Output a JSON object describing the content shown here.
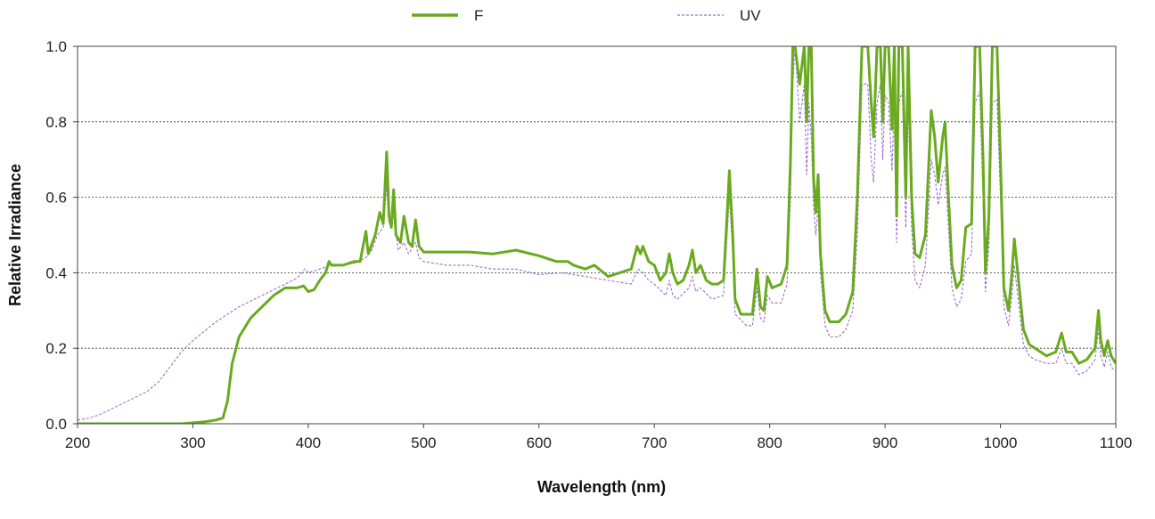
{
  "chart_data": {
    "type": "line",
    "xlabel": "Wavelength (nm)",
    "ylabel": "Relative Irradiance",
    "xlim": [
      200,
      1100
    ],
    "ylim": [
      0,
      1.0
    ],
    "x_ticks": [
      "200",
      "300",
      "400",
      "500",
      "600",
      "700",
      "800",
      "900",
      "1000",
      "1100"
    ],
    "y_ticks": [
      "0.0",
      "0.2",
      "0.4",
      "0.6",
      "0.8",
      "1.0"
    ],
    "grid": "horizontal dotted",
    "legend_position": "top",
    "series": [
      {
        "name": "F",
        "color": "#6aaa1e",
        "style": "solid",
        "points": [
          [
            200,
            0.0
          ],
          [
            250,
            0.0
          ],
          [
            290,
            0.0
          ],
          [
            310,
            0.005
          ],
          [
            320,
            0.01
          ],
          [
            326,
            0.015
          ],
          [
            330,
            0.06
          ],
          [
            334,
            0.16
          ],
          [
            340,
            0.23
          ],
          [
            350,
            0.28
          ],
          [
            360,
            0.31
          ],
          [
            370,
            0.34
          ],
          [
            380,
            0.36
          ],
          [
            390,
            0.36
          ],
          [
            396,
            0.365
          ],
          [
            400,
            0.35
          ],
          [
            405,
            0.355
          ],
          [
            410,
            0.38
          ],
          [
            415,
            0.4
          ],
          [
            418,
            0.43
          ],
          [
            420,
            0.42
          ],
          [
            430,
            0.42
          ],
          [
            440,
            0.43
          ],
          [
            445,
            0.43
          ],
          [
            450,
            0.51
          ],
          [
            452,
            0.45
          ],
          [
            458,
            0.5
          ],
          [
            462,
            0.56
          ],
          [
            465,
            0.53
          ],
          [
            468,
            0.72
          ],
          [
            470,
            0.55
          ],
          [
            472,
            0.52
          ],
          [
            474,
            0.62
          ],
          [
            476,
            0.5
          ],
          [
            480,
            0.48
          ],
          [
            483,
            0.55
          ],
          [
            487,
            0.48
          ],
          [
            490,
            0.47
          ],
          [
            493,
            0.54
          ],
          [
            496,
            0.47
          ],
          [
            500,
            0.455
          ],
          [
            520,
            0.455
          ],
          [
            540,
            0.455
          ],
          [
            560,
            0.45
          ],
          [
            580,
            0.46
          ],
          [
            600,
            0.445
          ],
          [
            615,
            0.43
          ],
          [
            620,
            0.43
          ],
          [
            625,
            0.43
          ],
          [
            630,
            0.42
          ],
          [
            640,
            0.41
          ],
          [
            648,
            0.42
          ],
          [
            652,
            0.41
          ],
          [
            660,
            0.39
          ],
          [
            670,
            0.4
          ],
          [
            680,
            0.41
          ],
          [
            685,
            0.47
          ],
          [
            688,
            0.45
          ],
          [
            690,
            0.47
          ],
          [
            695,
            0.43
          ],
          [
            700,
            0.42
          ],
          [
            705,
            0.38
          ],
          [
            710,
            0.4
          ],
          [
            713,
            0.45
          ],
          [
            716,
            0.4
          ],
          [
            720,
            0.37
          ],
          [
            725,
            0.38
          ],
          [
            730,
            0.42
          ],
          [
            733,
            0.46
          ],
          [
            736,
            0.4
          ],
          [
            740,
            0.42
          ],
          [
            745,
            0.38
          ],
          [
            750,
            0.37
          ],
          [
            755,
            0.37
          ],
          [
            760,
            0.38
          ],
          [
            763,
            0.55
          ],
          [
            765,
            0.67
          ],
          [
            768,
            0.5
          ],
          [
            770,
            0.33
          ],
          [
            775,
            0.29
          ],
          [
            780,
            0.29
          ],
          [
            785,
            0.29
          ],
          [
            789,
            0.41
          ],
          [
            792,
            0.31
          ],
          [
            795,
            0.3
          ],
          [
            798,
            0.39
          ],
          [
            802,
            0.36
          ],
          [
            810,
            0.37
          ],
          [
            815,
            0.42
          ],
          [
            818,
            0.7
          ],
          [
            820,
            1.0
          ],
          [
            822,
            1.0
          ],
          [
            826,
            0.9
          ],
          [
            830,
            1.0
          ],
          [
            832,
            0.8
          ],
          [
            834,
            1.0
          ],
          [
            836,
            1.0
          ],
          [
            838,
            0.65
          ],
          [
            840,
            0.56
          ],
          [
            842,
            0.66
          ],
          [
            844,
            0.45
          ],
          [
            848,
            0.3
          ],
          [
            852,
            0.27
          ],
          [
            860,
            0.27
          ],
          [
            866,
            0.29
          ],
          [
            872,
            0.35
          ],
          [
            876,
            0.6
          ],
          [
            880,
            1.0
          ],
          [
            885,
            1.0
          ],
          [
            888,
            0.85
          ],
          [
            890,
            0.76
          ],
          [
            893,
            1.0
          ],
          [
            896,
            1.0
          ],
          [
            898,
            0.8
          ],
          [
            900,
            1.0
          ],
          [
            903,
            1.0
          ],
          [
            906,
            0.78
          ],
          [
            908,
            1.0
          ],
          [
            910,
            0.55
          ],
          [
            912,
            1.0
          ],
          [
            915,
            1.0
          ],
          [
            918,
            0.6
          ],
          [
            920,
            1.0
          ],
          [
            923,
            0.6
          ],
          [
            926,
            0.45
          ],
          [
            930,
            0.44
          ],
          [
            935,
            0.5
          ],
          [
            940,
            0.83
          ],
          [
            943,
            0.76
          ],
          [
            946,
            0.64
          ],
          [
            950,
            0.76
          ],
          [
            952,
            0.8
          ],
          [
            955,
            0.6
          ],
          [
            958,
            0.42
          ],
          [
            962,
            0.36
          ],
          [
            966,
            0.38
          ],
          [
            970,
            0.52
          ],
          [
            975,
            0.53
          ],
          [
            978,
            1.0
          ],
          [
            982,
            1.0
          ],
          [
            985,
            0.7
          ],
          [
            987,
            0.4
          ],
          [
            990,
            0.55
          ],
          [
            993,
            1.0
          ],
          [
            997,
            1.0
          ],
          [
            1000,
            0.7
          ],
          [
            1003,
            0.36
          ],
          [
            1007,
            0.3
          ],
          [
            1010,
            0.4
          ],
          [
            1012,
            0.49
          ],
          [
            1015,
            0.4
          ],
          [
            1020,
            0.25
          ],
          [
            1025,
            0.21
          ],
          [
            1030,
            0.2
          ],
          [
            1040,
            0.18
          ],
          [
            1048,
            0.19
          ],
          [
            1053,
            0.24
          ],
          [
            1057,
            0.19
          ],
          [
            1062,
            0.19
          ],
          [
            1068,
            0.16
          ],
          [
            1075,
            0.17
          ],
          [
            1082,
            0.2
          ],
          [
            1085,
            0.3
          ],
          [
            1087,
            0.22
          ],
          [
            1090,
            0.18
          ],
          [
            1093,
            0.22
          ],
          [
            1096,
            0.18
          ],
          [
            1100,
            0.16
          ]
        ]
      },
      {
        "name": "UV",
        "color": "#9b6ecf",
        "style": "dashed",
        "points": [
          [
            200,
            0.01
          ],
          [
            210,
            0.015
          ],
          [
            220,
            0.025
          ],
          [
            230,
            0.04
          ],
          [
            240,
            0.055
          ],
          [
            250,
            0.07
          ],
          [
            260,
            0.085
          ],
          [
            270,
            0.11
          ],
          [
            280,
            0.15
          ],
          [
            290,
            0.19
          ],
          [
            300,
            0.22
          ],
          [
            310,
            0.245
          ],
          [
            320,
            0.27
          ],
          [
            330,
            0.29
          ],
          [
            340,
            0.31
          ],
          [
            350,
            0.325
          ],
          [
            360,
            0.34
          ],
          [
            370,
            0.355
          ],
          [
            380,
            0.37
          ],
          [
            390,
            0.385
          ],
          [
            397,
            0.41
          ],
          [
            400,
            0.4
          ],
          [
            410,
            0.41
          ],
          [
            420,
            0.42
          ],
          [
            430,
            0.42
          ],
          [
            440,
            0.425
          ],
          [
            450,
            0.44
          ],
          [
            455,
            0.46
          ],
          [
            460,
            0.5
          ],
          [
            465,
            0.52
          ],
          [
            468,
            0.63
          ],
          [
            470,
            0.53
          ],
          [
            474,
            0.55
          ],
          [
            478,
            0.46
          ],
          [
            483,
            0.48
          ],
          [
            487,
            0.45
          ],
          [
            493,
            0.48
          ],
          [
            496,
            0.44
          ],
          [
            500,
            0.43
          ],
          [
            520,
            0.42
          ],
          [
            540,
            0.42
          ],
          [
            560,
            0.41
          ],
          [
            580,
            0.41
          ],
          [
            600,
            0.395
          ],
          [
            620,
            0.4
          ],
          [
            640,
            0.39
          ],
          [
            660,
            0.38
          ],
          [
            680,
            0.37
          ],
          [
            686,
            0.41
          ],
          [
            690,
            0.4
          ],
          [
            695,
            0.38
          ],
          [
            700,
            0.37
          ],
          [
            710,
            0.34
          ],
          [
            713,
            0.38
          ],
          [
            716,
            0.34
          ],
          [
            720,
            0.33
          ],
          [
            730,
            0.36
          ],
          [
            733,
            0.39
          ],
          [
            736,
            0.35
          ],
          [
            740,
            0.36
          ],
          [
            750,
            0.33
          ],
          [
            760,
            0.34
          ],
          [
            765,
            0.6
          ],
          [
            768,
            0.45
          ],
          [
            770,
            0.29
          ],
          [
            780,
            0.26
          ],
          [
            785,
            0.26
          ],
          [
            789,
            0.36
          ],
          [
            792,
            0.28
          ],
          [
            795,
            0.27
          ],
          [
            798,
            0.34
          ],
          [
            802,
            0.32
          ],
          [
            810,
            0.32
          ],
          [
            815,
            0.37
          ],
          [
            818,
            0.6
          ],
          [
            820,
            0.9
          ],
          [
            822,
            1.0
          ],
          [
            826,
            0.8
          ],
          [
            830,
            0.9
          ],
          [
            832,
            0.66
          ],
          [
            834,
            0.85
          ],
          [
            836,
            0.76
          ],
          [
            838,
            0.58
          ],
          [
            840,
            0.5
          ],
          [
            842,
            0.58
          ],
          [
            844,
            0.4
          ],
          [
            848,
            0.26
          ],
          [
            852,
            0.23
          ],
          [
            860,
            0.23
          ],
          [
            866,
            0.25
          ],
          [
            872,
            0.3
          ],
          [
            876,
            0.5
          ],
          [
            880,
            0.9
          ],
          [
            885,
            0.9
          ],
          [
            888,
            0.7
          ],
          [
            890,
            0.64
          ],
          [
            893,
            0.85
          ],
          [
            896,
            0.9
          ],
          [
            898,
            0.7
          ],
          [
            900,
            0.87
          ],
          [
            903,
            0.85
          ],
          [
            906,
            0.67
          ],
          [
            908,
            0.85
          ],
          [
            910,
            0.48
          ],
          [
            912,
            0.85
          ],
          [
            915,
            0.88
          ],
          [
            918,
            0.52
          ],
          [
            920,
            0.86
          ],
          [
            923,
            0.52
          ],
          [
            926,
            0.38
          ],
          [
            930,
            0.36
          ],
          [
            935,
            0.42
          ],
          [
            940,
            0.7
          ],
          [
            943,
            0.66
          ],
          [
            946,
            0.58
          ],
          [
            950,
            0.66
          ],
          [
            952,
            0.68
          ],
          [
            955,
            0.52
          ],
          [
            958,
            0.36
          ],
          [
            962,
            0.31
          ],
          [
            966,
            0.33
          ],
          [
            970,
            0.43
          ],
          [
            975,
            0.45
          ],
          [
            978,
            0.85
          ],
          [
            982,
            0.88
          ],
          [
            985,
            0.6
          ],
          [
            987,
            0.35
          ],
          [
            990,
            0.47
          ],
          [
            993,
            0.85
          ],
          [
            997,
            0.86
          ],
          [
            1000,
            0.6
          ],
          [
            1003,
            0.31
          ],
          [
            1007,
            0.26
          ],
          [
            1010,
            0.34
          ],
          [
            1012,
            0.42
          ],
          [
            1015,
            0.34
          ],
          [
            1020,
            0.21
          ],
          [
            1025,
            0.18
          ],
          [
            1030,
            0.17
          ],
          [
            1040,
            0.16
          ],
          [
            1048,
            0.16
          ],
          [
            1053,
            0.2
          ],
          [
            1057,
            0.16
          ],
          [
            1062,
            0.16
          ],
          [
            1068,
            0.13
          ],
          [
            1075,
            0.14
          ],
          [
            1082,
            0.17
          ],
          [
            1085,
            0.25
          ],
          [
            1087,
            0.18
          ],
          [
            1090,
            0.15
          ],
          [
            1093,
            0.19
          ],
          [
            1096,
            0.15
          ],
          [
            1100,
            0.14
          ]
        ]
      }
    ]
  }
}
